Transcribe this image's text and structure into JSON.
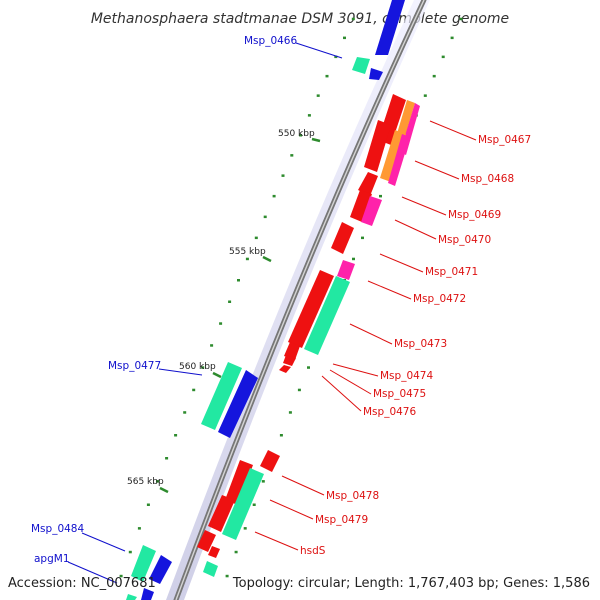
{
  "title": "Methanosphaera stadtmanae DSM 3091, complete genome",
  "accession_label": "Accession: NC_007681",
  "topology_label": "Topology: circular; Length: 1,767,403 bp; Genes: 1,586",
  "colors": {
    "backbone": "#8c8c8c",
    "tick": "#2e8b2e",
    "red": "#ee1111",
    "green": "#22e8a2",
    "blue": "#1515dd",
    "magenta": "#ff22aa",
    "orange": "#ff9933",
    "left_label": "#1010cc",
    "right_label": "#dd1111"
  },
  "position_labels": [
    "550 kbp",
    "555 kbp",
    "560 kbp",
    "565 kbp"
  ],
  "genes": [
    {
      "name": "Msp_0466",
      "side": "left",
      "color": "blue"
    },
    {
      "name": "Msp_0467",
      "side": "right",
      "color": "red"
    },
    {
      "name": "Msp_0468",
      "side": "right",
      "color": "red"
    },
    {
      "name": "Msp_0469",
      "side": "right",
      "color": "red"
    },
    {
      "name": "Msp_0470",
      "side": "right",
      "color": "red"
    },
    {
      "name": "Msp_0471",
      "side": "right",
      "color": "red"
    },
    {
      "name": "Msp_0472",
      "side": "right",
      "color": "red"
    },
    {
      "name": "Msp_0473",
      "side": "right",
      "color": "red"
    },
    {
      "name": "Msp_0474",
      "side": "right",
      "color": "red"
    },
    {
      "name": "Msp_0475",
      "side": "right",
      "color": "red"
    },
    {
      "name": "Msp_0476",
      "side": "right",
      "color": "red"
    },
    {
      "name": "Msp_0477",
      "side": "left",
      "color": "blue"
    },
    {
      "name": "Msp_0478",
      "side": "right",
      "color": "red"
    },
    {
      "name": "Msp_0479",
      "side": "right",
      "color": "red"
    },
    {
      "name": "hsdS",
      "side": "right",
      "color": "red"
    },
    {
      "name": "Msp_0484",
      "side": "left",
      "color": "blue"
    },
    {
      "name": "apgM1",
      "side": "left",
      "color": "blue"
    }
  ]
}
